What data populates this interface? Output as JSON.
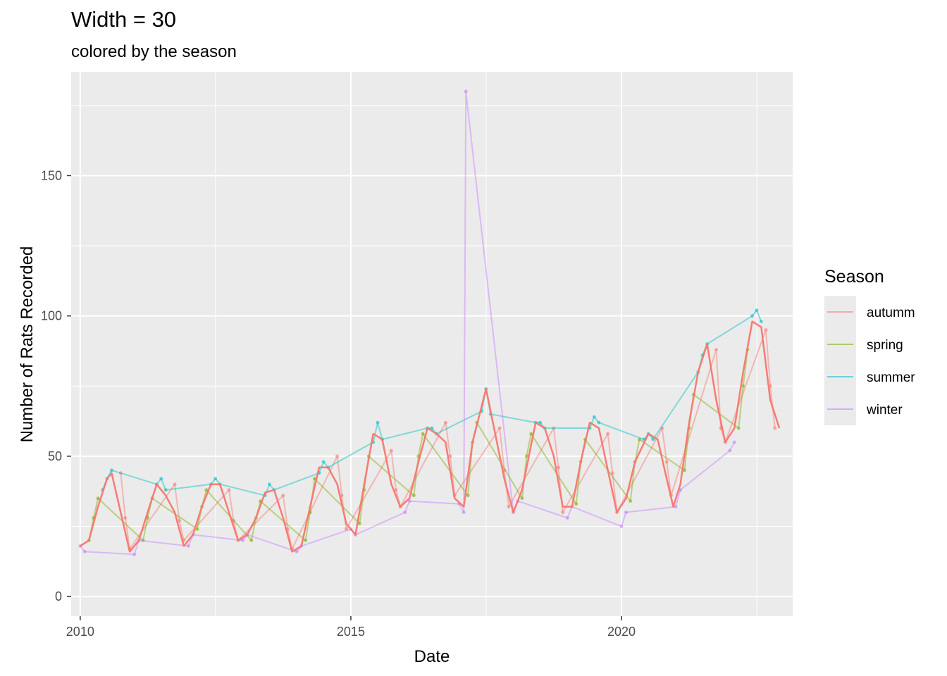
{
  "title": "Width = 30",
  "subtitle": "colored by the season",
  "chart_data": {
    "type": "line",
    "xlabel": "Date",
    "ylabel": "Number of Rats Recorded",
    "xlim": [
      "2009-11-01",
      "2023-03-01"
    ],
    "ylim": [
      -7,
      187
    ],
    "x_ticks": [
      {
        "value": "2010-01-01",
        "label": "2010"
      },
      {
        "value": "2015-01-01",
        "label": "2015"
      },
      {
        "value": "2020-01-01",
        "label": "2020"
      }
    ],
    "y_ticks": [
      {
        "value": 0,
        "label": "0"
      },
      {
        "value": 50,
        "label": "50"
      },
      {
        "value": 100,
        "label": "100"
      },
      {
        "value": 150,
        "label": "150"
      }
    ],
    "grid": true,
    "legend": {
      "title": "Season",
      "position": "right",
      "entries": [
        {
          "label": "autumm",
          "color": "#F8766D"
        },
        {
          "label": "spring",
          "color": "#7CAE00"
        },
        {
          "label": "summer",
          "color": "#00BFC4"
        },
        {
          "label": "winter",
          "color": "#C77CFF"
        }
      ]
    },
    "colors": {
      "panel": "#EBEBEB",
      "grid": "#FFFFFF",
      "rolling_mean": "#F8766D"
    },
    "series": [
      {
        "name": "autumm",
        "role": "daily counts",
        "points": [
          [
            "2010-10-01",
            44
          ],
          [
            "2010-11-01",
            28
          ],
          [
            "2010-12-01",
            17
          ],
          [
            "2011-10-01",
            40
          ],
          [
            "2011-11-01",
            27
          ],
          [
            "2011-12-01",
            20
          ],
          [
            "2012-10-01",
            38
          ],
          [
            "2012-11-01",
            27
          ],
          [
            "2012-12-01",
            20
          ],
          [
            "2013-10-01",
            36
          ],
          [
            "2013-11-01",
            24
          ],
          [
            "2013-12-01",
            17
          ],
          [
            "2014-10-01",
            50
          ],
          [
            "2014-11-01",
            36
          ],
          [
            "2014-12-01",
            24
          ],
          [
            "2015-10-01",
            52
          ],
          [
            "2015-11-01",
            38
          ],
          [
            "2015-12-01",
            32
          ],
          [
            "2016-10-01",
            62
          ],
          [
            "2016-11-01",
            50
          ],
          [
            "2016-12-01",
            36
          ],
          [
            "2017-10-01",
            60
          ],
          [
            "2017-11-01",
            45
          ],
          [
            "2017-12-01",
            32
          ],
          [
            "2018-10-01",
            60
          ],
          [
            "2018-11-01",
            46
          ],
          [
            "2018-12-01",
            30
          ],
          [
            "2019-10-01",
            58
          ],
          [
            "2019-11-01",
            44
          ],
          [
            "2019-12-01",
            30
          ],
          [
            "2020-10-01",
            60
          ],
          [
            "2020-11-01",
            48
          ],
          [
            "2020-12-01",
            36
          ],
          [
            "2021-10-01",
            88
          ],
          [
            "2021-11-01",
            60
          ],
          [
            "2021-12-01",
            55
          ],
          [
            "2022-09-01",
            95
          ],
          [
            "2022-10-01",
            75
          ],
          [
            "2022-11-01",
            60
          ]
        ]
      },
      {
        "name": "spring",
        "role": "daily counts",
        "points": [
          [
            "2010-03-01",
            20
          ],
          [
            "2010-04-01",
            28
          ],
          [
            "2010-05-01",
            35
          ],
          [
            "2011-03-01",
            20
          ],
          [
            "2011-04-01",
            28
          ],
          [
            "2011-05-01",
            35
          ],
          [
            "2012-03-01",
            24
          ],
          [
            "2012-04-01",
            32
          ],
          [
            "2012-05-01",
            38
          ],
          [
            "2013-03-01",
            20
          ],
          [
            "2013-04-01",
            28
          ],
          [
            "2013-05-01",
            34
          ],
          [
            "2014-03-01",
            20
          ],
          [
            "2014-04-01",
            30
          ],
          [
            "2014-05-01",
            42
          ],
          [
            "2015-03-01",
            26
          ],
          [
            "2015-04-01",
            38
          ],
          [
            "2015-05-01",
            50
          ],
          [
            "2016-03-01",
            36
          ],
          [
            "2016-04-01",
            50
          ],
          [
            "2016-05-01",
            58
          ],
          [
            "2017-03-01",
            36
          ],
          [
            "2017-04-01",
            55
          ],
          [
            "2017-05-01",
            62
          ],
          [
            "2018-03-01",
            35
          ],
          [
            "2018-04-01",
            50
          ],
          [
            "2018-05-01",
            58
          ],
          [
            "2019-03-01",
            33
          ],
          [
            "2019-04-01",
            48
          ],
          [
            "2019-05-01",
            56
          ],
          [
            "2020-03-01",
            34
          ],
          [
            "2020-04-01",
            48
          ],
          [
            "2020-05-01",
            56
          ],
          [
            "2021-03-01",
            45
          ],
          [
            "2021-04-01",
            60
          ],
          [
            "2021-05-01",
            72
          ],
          [
            "2022-03-01",
            60
          ],
          [
            "2022-04-01",
            75
          ],
          [
            "2022-05-01",
            88
          ]
        ]
      },
      {
        "name": "summer",
        "role": "daily counts",
        "points": [
          [
            "2010-06-01",
            38
          ],
          [
            "2010-07-01",
            42
          ],
          [
            "2010-08-01",
            45
          ],
          [
            "2011-06-01",
            40
          ],
          [
            "2011-07-01",
            42
          ],
          [
            "2011-08-01",
            38
          ],
          [
            "2012-06-01",
            40
          ],
          [
            "2012-07-01",
            42
          ],
          [
            "2012-08-01",
            40
          ],
          [
            "2013-06-01",
            36
          ],
          [
            "2013-07-01",
            40
          ],
          [
            "2013-08-01",
            38
          ],
          [
            "2014-06-01",
            44
          ],
          [
            "2014-07-01",
            48
          ],
          [
            "2014-08-01",
            46
          ],
          [
            "2015-06-01",
            55
          ],
          [
            "2015-07-01",
            62
          ],
          [
            "2015-08-01",
            56
          ],
          [
            "2016-06-01",
            60
          ],
          [
            "2016-07-01",
            60
          ],
          [
            "2016-08-01",
            58
          ],
          [
            "2017-06-01",
            66
          ],
          [
            "2017-07-01",
            74
          ],
          [
            "2017-08-01",
            65
          ],
          [
            "2018-06-01",
            62
          ],
          [
            "2018-07-01",
            62
          ],
          [
            "2018-08-01",
            60
          ],
          [
            "2019-06-01",
            60
          ],
          [
            "2019-07-01",
            64
          ],
          [
            "2019-08-01",
            62
          ],
          [
            "2020-06-01",
            56
          ],
          [
            "2020-07-01",
            58
          ],
          [
            "2020-08-01",
            56
          ],
          [
            "2021-06-01",
            80
          ],
          [
            "2021-07-01",
            86
          ],
          [
            "2021-08-01",
            90
          ],
          [
            "2022-06-01",
            100
          ],
          [
            "2022-07-01",
            102
          ],
          [
            "2022-08-01",
            98
          ]
        ]
      },
      {
        "name": "winter",
        "role": "daily counts",
        "points": [
          [
            "2010-01-01",
            18
          ],
          [
            "2010-02-01",
            16
          ],
          [
            "2011-01-01",
            15
          ],
          [
            "2011-02-01",
            20
          ],
          [
            "2012-01-01",
            18
          ],
          [
            "2012-02-01",
            22
          ],
          [
            "2013-01-01",
            20
          ],
          [
            "2013-02-01",
            22
          ],
          [
            "2014-01-01",
            16
          ],
          [
            "2014-02-01",
            18
          ],
          [
            "2015-01-01",
            24
          ],
          [
            "2015-02-01",
            22
          ],
          [
            "2016-01-01",
            30
          ],
          [
            "2016-02-01",
            34
          ],
          [
            "2017-01-01",
            33
          ],
          [
            "2017-02-01",
            30
          ],
          [
            "2017-02-15",
            180
          ],
          [
            "2018-01-01",
            30
          ],
          [
            "2018-02-01",
            34
          ],
          [
            "2019-01-01",
            28
          ],
          [
            "2019-02-01",
            32
          ],
          [
            "2020-01-01",
            25
          ],
          [
            "2020-02-01",
            30
          ],
          [
            "2021-01-01",
            32
          ],
          [
            "2021-02-01",
            38
          ],
          [
            "2022-01-01",
            52
          ],
          [
            "2022-02-01",
            55
          ]
        ]
      },
      {
        "name": "",
        "role": "30-day rolling mean",
        "points": [
          [
            "2010-01-01",
            18
          ],
          [
            "2010-03-01",
            20
          ],
          [
            "2010-05-01",
            32
          ],
          [
            "2010-07-01",
            42
          ],
          [
            "2010-08-01",
            44
          ],
          [
            "2010-10-01",
            30
          ],
          [
            "2010-12-01",
            16
          ],
          [
            "2011-02-01",
            20
          ],
          [
            "2011-04-01",
            30
          ],
          [
            "2011-06-01",
            40
          ],
          [
            "2011-08-01",
            36
          ],
          [
            "2011-10-01",
            30
          ],
          [
            "2011-12-01",
            18
          ],
          [
            "2012-02-01",
            22
          ],
          [
            "2012-04-01",
            32
          ],
          [
            "2012-06-01",
            40
          ],
          [
            "2012-08-01",
            40
          ],
          [
            "2012-10-01",
            30
          ],
          [
            "2012-12-01",
            20
          ],
          [
            "2013-02-01",
            22
          ],
          [
            "2013-04-01",
            28
          ],
          [
            "2013-06-01",
            37
          ],
          [
            "2013-08-01",
            38
          ],
          [
            "2013-10-01",
            28
          ],
          [
            "2013-12-01",
            16
          ],
          [
            "2014-02-01",
            18
          ],
          [
            "2014-04-01",
            32
          ],
          [
            "2014-06-01",
            46
          ],
          [
            "2014-08-01",
            46
          ],
          [
            "2014-10-01",
            40
          ],
          [
            "2014-12-01",
            26
          ],
          [
            "2015-02-01",
            22
          ],
          [
            "2015-04-01",
            40
          ],
          [
            "2015-06-01",
            58
          ],
          [
            "2015-08-01",
            56
          ],
          [
            "2015-10-01",
            40
          ],
          [
            "2015-12-01",
            32
          ],
          [
            "2016-02-01",
            35
          ],
          [
            "2016-04-01",
            48
          ],
          [
            "2016-06-01",
            60
          ],
          [
            "2016-08-01",
            58
          ],
          [
            "2016-10-01",
            55
          ],
          [
            "2016-12-01",
            35
          ],
          [
            "2017-02-01",
            32
          ],
          [
            "2017-04-01",
            55
          ],
          [
            "2017-07-01",
            74
          ],
          [
            "2017-09-01",
            58
          ],
          [
            "2017-11-01",
            42
          ],
          [
            "2018-01-01",
            30
          ],
          [
            "2018-03-01",
            38
          ],
          [
            "2018-06-01",
            62
          ],
          [
            "2018-08-01",
            60
          ],
          [
            "2018-10-01",
            50
          ],
          [
            "2018-12-01",
            32
          ],
          [
            "2019-02-01",
            32
          ],
          [
            "2019-04-01",
            48
          ],
          [
            "2019-06-01",
            62
          ],
          [
            "2019-08-01",
            60
          ],
          [
            "2019-10-01",
            45
          ],
          [
            "2019-12-01",
            30
          ],
          [
            "2020-02-01",
            35
          ],
          [
            "2020-04-01",
            48
          ],
          [
            "2020-07-01",
            58
          ],
          [
            "2020-09-01",
            56
          ],
          [
            "2020-11-01",
            42
          ],
          [
            "2020-12-15",
            32
          ],
          [
            "2021-02-01",
            40
          ],
          [
            "2021-04-01",
            62
          ],
          [
            "2021-06-01",
            80
          ],
          [
            "2021-08-01",
            90
          ],
          [
            "2021-10-01",
            70
          ],
          [
            "2021-12-01",
            55
          ],
          [
            "2022-02-01",
            60
          ],
          [
            "2022-04-01",
            80
          ],
          [
            "2022-06-01",
            98
          ],
          [
            "2022-08-01",
            96
          ],
          [
            "2022-10-01",
            70
          ],
          [
            "2022-12-01",
            60
          ]
        ]
      }
    ]
  }
}
